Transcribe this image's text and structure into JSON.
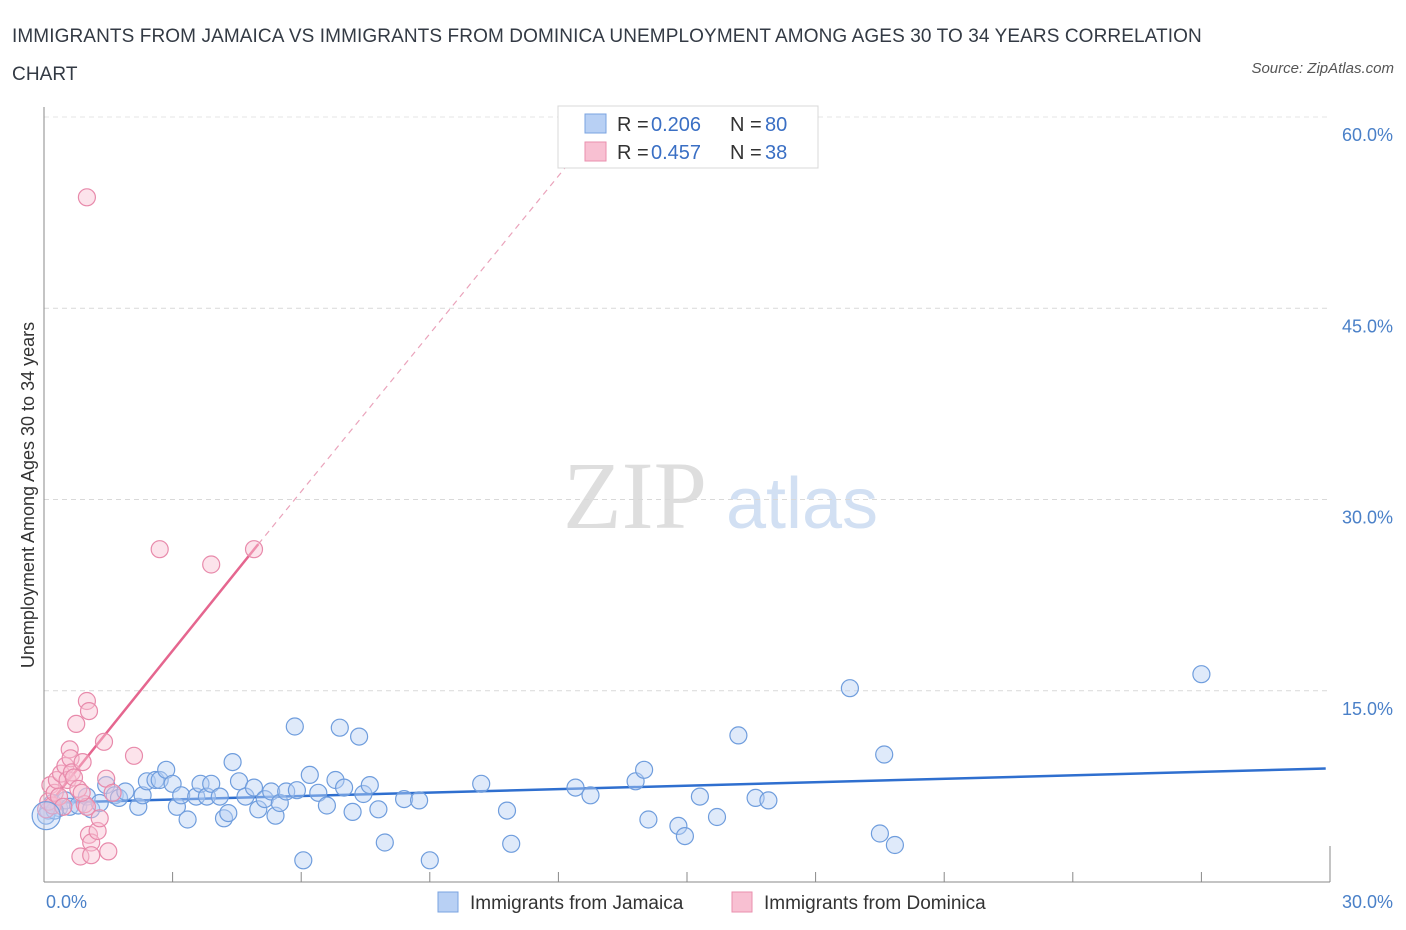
{
  "title": "IMMIGRANTS FROM JAMAICA VS IMMIGRANTS FROM DOMINICA UNEMPLOYMENT AMONG AGES 30 TO 34 YEARS CORRELATION CHART",
  "source": "Source: ZipAtlas.com",
  "watermark": {
    "zip": "ZIP",
    "atlas": "atlas"
  },
  "colors": {
    "blue": "#4a7fd0",
    "blue_fill": "#b8d0f4",
    "pink": "#e5668f",
    "pink_fill": "#f8c0d2"
  },
  "legend": {
    "rows": [
      {
        "r_label": "R =",
        "r_value": "0.206",
        "n_label": "N =",
        "n_value": "80"
      },
      {
        "r_label": "R =",
        "r_value": "0.457",
        "n_label": "N =",
        "n_value": "38"
      }
    ]
  },
  "chart_data": {
    "type": "scatter",
    "title": "IMMIGRANTS FROM JAMAICA VS IMMIGRANTS FROM DOMINICA UNEMPLOYMENT AMONG AGES 30 TO 34 YEARS CORRELATION CHART",
    "xlabel": "",
    "ylabel": "Unemployment Among Ages 30 to 34 years",
    "xlim": [
      0,
      30
    ],
    "ylim": [
      0,
      60
    ],
    "x_tick_labels": [
      "0.0%",
      "30.0%"
    ],
    "y_ticks": [
      15,
      30,
      45,
      60
    ],
    "y_tick_labels": [
      "15.0%",
      "30.0%",
      "45.0%",
      "60.0%"
    ],
    "grid": true,
    "legend_position": "top-center",
    "series": [
      {
        "name": "Immigrants from Jamaica",
        "color": "#4a7fd0",
        "trend": {
          "x": [
            0,
            29.9
          ],
          "y": [
            6.2,
            8.9
          ]
        },
        "points": [
          [
            0.1,
            5.6
          ],
          [
            0.2,
            6.2
          ],
          [
            0.35,
            5.8
          ],
          [
            0.5,
            6.4
          ],
          [
            0.6,
            5.9
          ],
          [
            0.8,
            6.0
          ],
          [
            1.0,
            6.7
          ],
          [
            1.1,
            5.7
          ],
          [
            1.3,
            6.2
          ],
          [
            1.45,
            7.6
          ],
          [
            1.65,
            6.8
          ],
          [
            1.75,
            6.6
          ],
          [
            1.9,
            7.1
          ],
          [
            2.2,
            5.9
          ],
          [
            2.3,
            6.8
          ],
          [
            2.4,
            7.9
          ],
          [
            2.6,
            8.0
          ],
          [
            2.7,
            8.0
          ],
          [
            2.85,
            8.8
          ],
          [
            3.0,
            7.7
          ],
          [
            3.1,
            5.9
          ],
          [
            3.2,
            6.8
          ],
          [
            3.35,
            4.9
          ],
          [
            3.55,
            6.7
          ],
          [
            3.65,
            7.7
          ],
          [
            3.8,
            6.7
          ],
          [
            3.9,
            7.7
          ],
          [
            4.1,
            6.7
          ],
          [
            4.2,
            5.0
          ],
          [
            4.3,
            5.4
          ],
          [
            4.4,
            9.4
          ],
          [
            4.55,
            7.9
          ],
          [
            4.7,
            6.7
          ],
          [
            4.9,
            7.4
          ],
          [
            5.0,
            5.7
          ],
          [
            5.15,
            6.5
          ],
          [
            5.3,
            7.1
          ],
          [
            5.4,
            5.2
          ],
          [
            5.5,
            6.2
          ],
          [
            5.65,
            7.1
          ],
          [
            5.85,
            12.2
          ],
          [
            5.9,
            7.2
          ],
          [
            6.05,
            1.7
          ],
          [
            6.2,
            8.4
          ],
          [
            6.4,
            7.0
          ],
          [
            6.6,
            6.0
          ],
          [
            6.8,
            8.0
          ],
          [
            6.9,
            12.1
          ],
          [
            7.0,
            7.4
          ],
          [
            7.2,
            5.5
          ],
          [
            7.35,
            11.4
          ],
          [
            7.45,
            6.9
          ],
          [
            7.6,
            7.6
          ],
          [
            7.8,
            5.7
          ],
          [
            7.95,
            3.1
          ],
          [
            8.4,
            6.5
          ],
          [
            8.75,
            6.4
          ],
          [
            9.0,
            1.7
          ],
          [
            10.2,
            7.7
          ],
          [
            10.8,
            5.6
          ],
          [
            10.9,
            3.0
          ],
          [
            12.4,
            7.4
          ],
          [
            12.75,
            6.8
          ],
          [
            13.8,
            7.9
          ],
          [
            14.0,
            8.8
          ],
          [
            14.1,
            4.9
          ],
          [
            14.8,
            4.4
          ],
          [
            14.95,
            3.6
          ],
          [
            15.3,
            6.7
          ],
          [
            15.7,
            5.1
          ],
          [
            16.2,
            11.5
          ],
          [
            16.6,
            6.6
          ],
          [
            16.9,
            6.4
          ],
          [
            18.8,
            15.2
          ],
          [
            19.5,
            3.8
          ],
          [
            19.6,
            10.0
          ],
          [
            19.85,
            2.9
          ],
          [
            27.0,
            16.3
          ],
          [
            0.05,
            5.2
          ],
          [
            0.25,
            5.6
          ]
        ]
      },
      {
        "name": "Immigrants from Dominica",
        "color": "#e5668f",
        "trend": {
          "x": [
            0,
            5.0
          ],
          "y": [
            5.6,
            26.5
          ]
        },
        "trend_extension": {
          "x": [
            5.0,
            13.0
          ],
          "y": [
            26.5,
            59.5
          ]
        },
        "points": [
          [
            0.05,
            5.7
          ],
          [
            0.1,
            6.3
          ],
          [
            0.15,
            7.6
          ],
          [
            0.2,
            6.0
          ],
          [
            0.25,
            7.0
          ],
          [
            0.3,
            8.0
          ],
          [
            0.35,
            6.7
          ],
          [
            0.4,
            8.5
          ],
          [
            0.45,
            5.9
          ],
          [
            0.5,
            9.1
          ],
          [
            0.55,
            8.0
          ],
          [
            0.6,
            10.4
          ],
          [
            0.62,
            9.7
          ],
          [
            0.65,
            8.6
          ],
          [
            0.7,
            8.2
          ],
          [
            0.75,
            12.4
          ],
          [
            0.8,
            7.3
          ],
          [
            0.85,
            2.0
          ],
          [
            0.9,
            9.4
          ],
          [
            0.95,
            6.1
          ],
          [
            1.0,
            5.9
          ],
          [
            0.88,
            7.0
          ],
          [
            1.05,
            3.7
          ],
          [
            1.1,
            3.1
          ],
          [
            1.0,
            53.7
          ],
          [
            1.0,
            14.2
          ],
          [
            1.05,
            13.4
          ],
          [
            1.1,
            2.1
          ],
          [
            1.25,
            4.0
          ],
          [
            1.3,
            5.0
          ],
          [
            1.4,
            11.0
          ],
          [
            1.45,
            8.1
          ],
          [
            1.5,
            2.4
          ],
          [
            1.6,
            7.0
          ],
          [
            2.1,
            9.9
          ],
          [
            2.7,
            26.1
          ],
          [
            3.9,
            24.9
          ],
          [
            4.9,
            26.1
          ]
        ]
      }
    ]
  },
  "bottom_legend": [
    {
      "label": "Immigrants from Jamaica"
    },
    {
      "label": "Immigrants from Dominica"
    }
  ]
}
